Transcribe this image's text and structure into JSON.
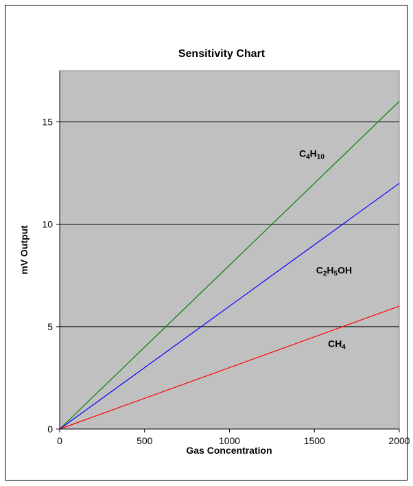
{
  "chart_data": {
    "type": "line",
    "title": "Sensitivity Chart",
    "xlabel": "Gas Concentration",
    "ylabel": "mV Output",
    "xlim": [
      0,
      2000
    ],
    "ylim": [
      0,
      17.5
    ],
    "x_ticks": [
      0,
      500,
      1000,
      1500,
      2000
    ],
    "y_ticks": [
      0,
      5,
      10,
      15
    ],
    "grid": "horizontal",
    "plot_background": "#c0c0c0",
    "series": [
      {
        "name": "C4H10",
        "label_parts": [
          [
            "C",
            ""
          ],
          [
            "4",
            "sub"
          ],
          [
            "H",
            ""
          ],
          [
            "10",
            "sub"
          ]
        ],
        "color": "#008000",
        "x": [
          0,
          2000
        ],
        "y": [
          0,
          16
        ]
      },
      {
        "name": "C2H5OH",
        "label_parts": [
          [
            "C",
            ""
          ],
          [
            "2",
            "sub"
          ],
          [
            "H",
            ""
          ],
          [
            "5",
            "sub"
          ],
          [
            "OH",
            ""
          ]
        ],
        "color": "#0000ff",
        "x": [
          0,
          2000
        ],
        "y": [
          0,
          12
        ]
      },
      {
        "name": "CH4",
        "label_parts": [
          [
            "CH",
            ""
          ],
          [
            "4",
            "sub"
          ]
        ],
        "color": "#ff0000",
        "x": [
          0,
          2000
        ],
        "y": [
          0,
          6
        ]
      }
    ]
  }
}
